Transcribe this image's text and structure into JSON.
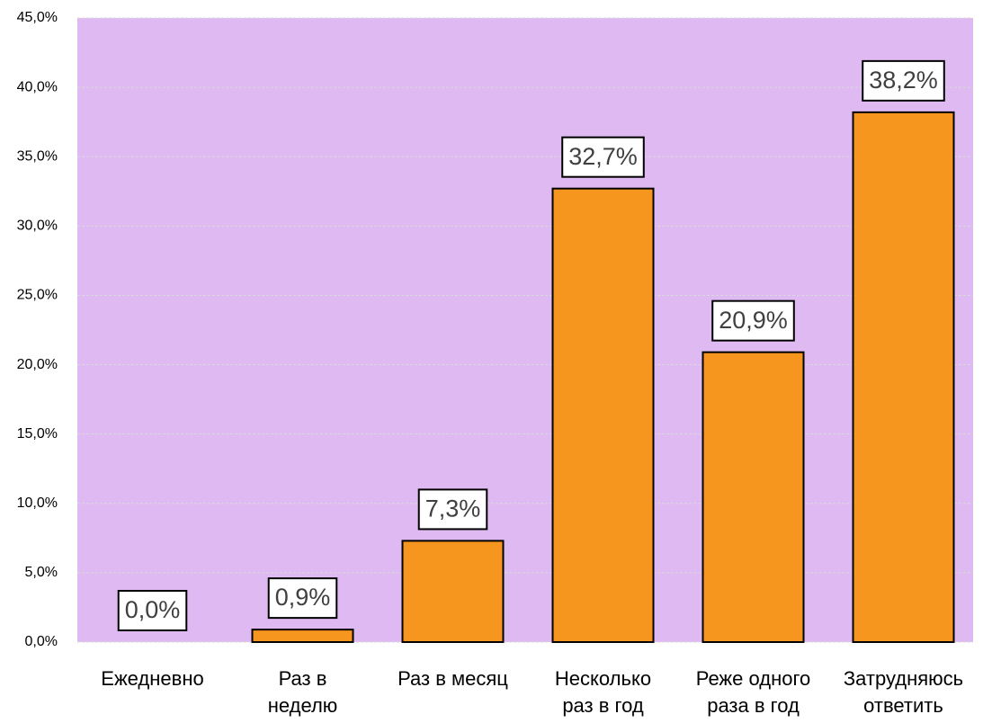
{
  "chart_data": {
    "type": "bar",
    "categories": [
      "Ежедневно",
      "Раз в\nнеделю",
      "Раз в месяц",
      "Несколько\nраз в год",
      "Реже одного\nраза в год",
      "Затрудняюсь\nответить"
    ],
    "values": [
      0.0,
      0.9,
      7.3,
      32.7,
      20.9,
      38.2
    ],
    "value_labels": [
      "0,0%",
      "0,9%",
      "7,3%",
      "32,7%",
      "20,9%",
      "38,2%"
    ],
    "color": "#f7961e",
    "ylim": [
      0,
      45
    ],
    "yticks": [
      {
        "value": 0,
        "label": "0,0%"
      },
      {
        "value": 5,
        "label": "5,0%"
      },
      {
        "value": 10,
        "label": "10,0%"
      },
      {
        "value": 15,
        "label": "15,0%"
      },
      {
        "value": 20,
        "label": "20,0%"
      },
      {
        "value": 25,
        "label": "25,0%"
      },
      {
        "value": 30,
        "label": "30,0%"
      },
      {
        "value": 35,
        "label": "35,0%"
      },
      {
        "value": 40,
        "label": "40,0%"
      },
      {
        "value": 45,
        "label": "45,0%"
      }
    ],
    "grid": true
  }
}
